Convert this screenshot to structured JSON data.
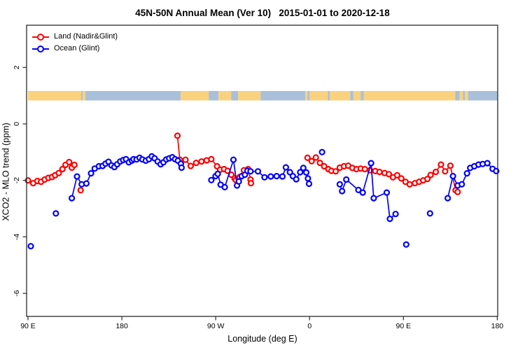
{
  "chart_data": {
    "type": "line",
    "title": "45N-50N Annual Mean (Ver 10)   2015-01-01 to 2020-12-18",
    "xlabel": "Longitude (deg E)",
    "ylabel": "XCO2 - MLO trend (ppm)",
    "x_axis_note": "longitude unwrapped eastward from 90E; 450 deg span",
    "xlim": [
      90,
      540
    ],
    "ylim": [
      -6.8,
      3.5
    ],
    "grid": false,
    "legend_position": "top-left",
    "legend": [
      {
        "label": "Land (Nadir&Glint)",
        "color": "#ff0000"
      },
      {
        "label": "Ocean (Glint)",
        "color": "#0000ff"
      }
    ],
    "x_ticks": [
      {
        "lon": 90,
        "label": "90 E"
      },
      {
        "lon": 180,
        "label": "180"
      },
      {
        "lon": 270,
        "label": "90 W"
      },
      {
        "lon": 360,
        "label": "0"
      },
      {
        "lon": 450,
        "label": "90 E"
      },
      {
        "lon": 540,
        "label": "180"
      }
    ],
    "y_ticks": [
      {
        "v": 2,
        "label": "2"
      },
      {
        "v": 0,
        "label": "0"
      },
      {
        "v": -2,
        "label": "-2"
      },
      {
        "v": -4,
        "label": "-4"
      },
      {
        "v": -6,
        "label": "-6"
      }
    ],
    "map_strip": {
      "value_center": 1.0,
      "land_color": "#fad27e",
      "ocean_color": "#a9bfda",
      "segments": [
        [
          90,
          141,
          "land"
        ],
        [
          141,
          142.5,
          "ocean"
        ],
        [
          142.5,
          145,
          "land"
        ],
        [
          145,
          236.4,
          "ocean"
        ],
        [
          236.4,
          263.3,
          "land"
        ],
        [
          263.3,
          272.7,
          "ocean"
        ],
        [
          272.7,
          284.8,
          "land"
        ],
        [
          284.8,
          291.5,
          "ocean"
        ],
        [
          291.5,
          313,
          "land"
        ],
        [
          313,
          356,
          "ocean"
        ],
        [
          356,
          358,
          "land"
        ],
        [
          358,
          360,
          "ocean"
        ],
        [
          360,
          377.5,
          "land"
        ],
        [
          377.5,
          379.5,
          "ocean"
        ],
        [
          379.5,
          399,
          "land"
        ],
        [
          399,
          402,
          "ocean"
        ],
        [
          402,
          409,
          "land"
        ],
        [
          409,
          412,
          "ocean"
        ],
        [
          412,
          499.7,
          "land"
        ],
        [
          499.7,
          504,
          "ocean"
        ],
        [
          504,
          507,
          "land"
        ],
        [
          507,
          509,
          "ocean"
        ],
        [
          509,
          512,
          "land"
        ],
        [
          512,
          540,
          "ocean"
        ]
      ]
    },
    "series": [
      {
        "name": "Land (Nadir&Glint)",
        "color": "#ff0000",
        "runs": [
          [
            [
              90,
              -2.0
            ],
            [
              95,
              -2.1
            ],
            [
              99,
              -2.02
            ],
            [
              102.5,
              -2.05
            ],
            [
              106,
              -1.97
            ],
            [
              109.5,
              -1.91
            ],
            [
              113,
              -1.88
            ],
            [
              116,
              -1.82
            ],
            [
              119.5,
              -1.74
            ],
            [
              123,
              -1.6
            ],
            [
              126,
              -1.45
            ],
            [
              129.5,
              -1.35
            ],
            [
              132,
              -1.55
            ],
            [
              134.5,
              -1.45
            ]
          ],
          [
            [
              233.3,
              -0.42
            ],
            [
              235.6,
              -1.27
            ],
            [
              241,
              -1.27
            ],
            [
              246,
              -1.49
            ],
            [
              251.2,
              -1.38
            ],
            [
              256.4,
              -1.33
            ],
            [
              261.3,
              -1.29
            ],
            [
              265.8,
              -1.25
            ],
            [
              271.3,
              -1.5
            ],
            [
              274.2,
              -1.62
            ],
            [
              278,
              -1.6
            ],
            [
              281.4,
              -1.66
            ],
            [
              285,
              -1.8
            ],
            [
              288.1,
              -1.93
            ],
            [
              289.3,
              -1.99
            ],
            [
              293,
              -1.88
            ],
            [
              297,
              -1.64
            ],
            [
              301.1,
              -1.6
            ],
            [
              303.4,
              -1.97
            ],
            [
              303.8,
              -2.1
            ]
          ],
          [
            [
              358,
              -1.2
            ],
            [
              362,
              -1.32
            ],
            [
              366,
              -1.19
            ],
            [
              370,
              -1.38
            ],
            [
              374,
              -1.5
            ],
            [
              378,
              -1.6
            ],
            [
              381,
              -1.66
            ],
            [
              385,
              -1.68
            ],
            [
              389,
              -1.55
            ],
            [
              393,
              -1.5
            ],
            [
              397,
              -1.48
            ],
            [
              401,
              -1.56
            ],
            [
              405,
              -1.6
            ],
            [
              409,
              -1.58
            ],
            [
              413,
              -1.6
            ],
            [
              418,
              -1.64
            ],
            [
              423,
              -1.67
            ],
            [
              427,
              -1.7
            ],
            [
              432,
              -1.74
            ],
            [
              436,
              -1.78
            ],
            [
              440,
              -1.89
            ],
            [
              444,
              -1.82
            ],
            [
              448,
              -1.93
            ],
            [
              452,
              -2.05
            ],
            [
              456,
              -2.14
            ],
            [
              461,
              -2.1
            ],
            [
              465,
              -2.05
            ],
            [
              469,
              -2.0
            ],
            [
              473,
              -1.95
            ],
            [
              476,
              -1.81
            ],
            [
              481,
              -1.7
            ],
            [
              486,
              -1.44
            ],
            [
              490,
              -1.68
            ],
            [
              495,
              -1.48
            ],
            [
              500,
              -2.35
            ],
            [
              502,
              -2.41
            ]
          ]
        ],
        "singles": [
          [
            140.5,
            -2.35
          ]
        ]
      },
      {
        "name": "Ocean (Glint)",
        "color": "#0000ff",
        "runs": [
          [
            [
              132,
              -2.63
            ],
            [
              137,
              -1.86
            ],
            [
              141.5,
              -2.14
            ],
            [
              146,
              -2.11
            ],
            [
              150.5,
              -1.75
            ],
            [
              154,
              -1.58
            ],
            [
              158,
              -1.5
            ],
            [
              161.5,
              -1.49
            ],
            [
              164.3,
              -1.41
            ],
            [
              167.2,
              -1.34
            ],
            [
              170.1,
              -1.47
            ],
            [
              172.8,
              -1.53
            ],
            [
              175.5,
              -1.43
            ],
            [
              178.4,
              -1.33
            ],
            [
              181.3,
              -1.28
            ],
            [
              184,
              -1.25
            ],
            [
              186.7,
              -1.36
            ],
            [
              189.6,
              -1.3
            ],
            [
              191.2,
              -1.25
            ],
            [
              194.1,
              -1.26
            ],
            [
              197,
              -1.2
            ],
            [
              199.7,
              -1.26
            ],
            [
              203,
              -1.3
            ],
            [
              206,
              -1.25
            ],
            [
              208.7,
              -1.15
            ],
            [
              211.4,
              -1.22
            ],
            [
              214.3,
              -1.33
            ],
            [
              217.2,
              -1.43
            ],
            [
              219.9,
              -1.36
            ],
            [
              222.6,
              -1.26
            ],
            [
              225.4,
              -1.22
            ],
            [
              228.4,
              -1.18
            ],
            [
              231,
              -1.25
            ],
            [
              233.7,
              -1.3
            ],
            [
              236.6,
              -1.41
            ],
            [
              237.3,
              -1.55
            ]
          ],
          [
            [
              265.8,
              -1.99
            ],
            [
              269.8,
              -1.85
            ],
            [
              272,
              -1.77
            ],
            [
              274.7,
              -2.15
            ],
            [
              278.7,
              -2.24
            ],
            [
              287,
              -1.27
            ],
            [
              290.4,
              -2.18
            ],
            [
              292.2,
              -2.04
            ],
            [
              294.9,
              -1.85
            ],
            [
              298,
              -1.8
            ],
            [
              300.4,
              -1.66
            ],
            [
              303.4,
              -1.68
            ],
            [
              310.5,
              -1.68
            ],
            [
              316.8,
              -1.89
            ],
            [
              322.8,
              -1.86
            ],
            [
              328.4,
              -1.85
            ],
            [
              334,
              -1.86
            ],
            [
              337.3,
              -1.54
            ],
            [
              341.2,
              -1.71
            ],
            [
              344,
              -1.85
            ],
            [
              347.2,
              -1.96
            ],
            [
              351,
              -1.71
            ],
            [
              354,
              -1.56
            ],
            [
              356.8,
              -1.72
            ],
            [
              358.4,
              -1.93
            ],
            [
              359.5,
              -2.12
            ]
          ],
          [
            [
              389,
              -2.14
            ],
            [
              391.2,
              -2.38
            ],
            [
              395.2,
              -1.97
            ],
            [
              406.8,
              -2.34
            ],
            [
              411,
              -2.43
            ],
            [
              419,
              -1.39
            ],
            [
              421.5,
              -2.63
            ],
            [
              434,
              -2.43
            ],
            [
              437,
              -3.36
            ],
            [
              442.5,
              -3.19
            ]
          ],
          [
            [
              492.5,
              -2.63
            ],
            [
              497.5,
              -1.85
            ],
            [
              502,
              -2.18
            ],
            [
              506,
              -2.14
            ],
            [
              511,
              -1.75
            ],
            [
              514,
              -1.56
            ],
            [
              518,
              -1.5
            ],
            [
              522,
              -1.44
            ],
            [
              526,
              -1.42
            ],
            [
              530.5,
              -1.39
            ],
            [
              535.5,
              -1.59
            ],
            [
              539,
              -1.67
            ]
          ]
        ],
        "singles": [
          [
            92.7,
            -4.33
          ],
          [
            116.7,
            -3.17
          ],
          [
            372,
            -1.0
          ],
          [
            452.7,
            -4.27
          ],
          [
            475.5,
            -3.17
          ]
        ]
      }
    ]
  }
}
